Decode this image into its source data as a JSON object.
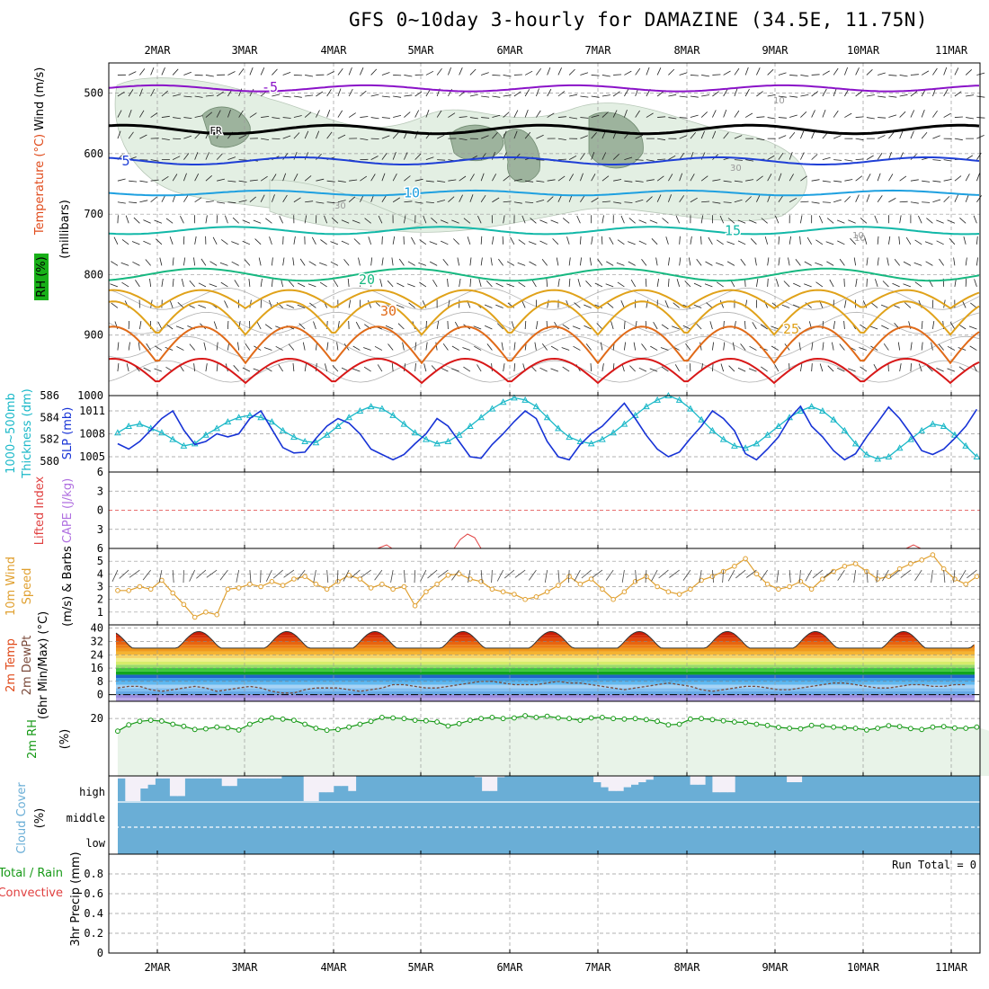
{
  "title": "GFS 0~10day 3-hourly for DAMAZINE (34.5E, 11.75N)",
  "dates": [
    "2MAR",
    "3MAR",
    "4MAR",
    "5MAR",
    "6MAR",
    "7MAR",
    "8MAR",
    "9MAR",
    "10MAR",
    "11MAR"
  ],
  "colors": {
    "t_minus5": "#8a12c8",
    "t_fr": "#000000",
    "t_5": "#1f3fd6",
    "t_10": "#1ea0e0",
    "t_15": "#12b8a8",
    "t_20": "#16b880",
    "t_30": "#e0a21a",
    "t_35": "#e06a18",
    "t_40": "#d81818",
    "rh_fill": "#e3efe3",
    "rh_dark": "#9db39d",
    "slp": "#1733d6",
    "thick": "#1ab8c8",
    "wind10": "#e0a030",
    "rh2m": "#189a18",
    "rh2m_fill": "#e8f3e8",
    "cloud": "#6aaed6",
    "cloud_clear": "#f4f0f8"
  },
  "panel_labels": {
    "upper": {
      "wind": "Wind (m/s)",
      "temperature": "Temperature (°C)",
      "rh": "RH (%)",
      "units": "(millibars)"
    },
    "slp": {
      "thick1": "1000~500mb",
      "thick2": "Thickness (dm)",
      "slp": "SLP (mb)"
    },
    "cape": {
      "li": "Lifted Index",
      "cape": "CAPE (J/kg)"
    },
    "wind10": {
      "l1": "10m Wind",
      "l2": "Speed",
      "l3": "(m/s) & Barbs"
    },
    "temp2m": {
      "l1": "2m Temp",
      "l2": "2m DewPt",
      "l3": "(6hr Min/Max) (°C)"
    },
    "rh2m": {
      "l1": "2m RH",
      "l2": "(%)"
    },
    "cloud": {
      "l1": "Cloud Cover",
      "l2": "(%)",
      "high": "high",
      "middle": "middle",
      "low": "low"
    },
    "precip": {
      "l1": "Total / Rain",
      "l2": "Convective",
      "l3": "3hr Precip (mm)",
      "run_total": "Run Total = 0"
    }
  },
  "chart_data": [
    {
      "type": "line",
      "name": "upper-air",
      "y_axis": "pressure (mb)",
      "yticks": [
        500,
        600,
        700,
        800,
        900,
        1000
      ],
      "ylim": [
        450,
        1000
      ],
      "contour_labels": [
        {
          "text": "-5",
          "level_mb": 490
        },
        {
          "text": "FR",
          "level_mb": 560
        },
        {
          "text": "5",
          "level_mb": 612
        },
        {
          "text": "10",
          "level_mb": 665
        },
        {
          "text": "15",
          "level_mb": 727
        },
        {
          "text": "20",
          "level_mb": 808
        },
        {
          "text": "30",
          "level_mb": 860
        },
        {
          "text": "25",
          "level_mb": 890
        }
      ],
      "rh_labels": [
        "10",
        "30",
        "10",
        "30",
        "10"
      ],
      "isotherms": [
        {
          "level": -5,
          "mean_mb": 492,
          "amp": 5
        },
        {
          "level": 0,
          "mean_mb": 560,
          "amp": 7
        },
        {
          "level": 5,
          "mean_mb": 612,
          "amp": 6
        },
        {
          "level": 10,
          "mean_mb": 665,
          "amp": 4
        },
        {
          "level": 15,
          "mean_mb": 727,
          "amp": 6
        },
        {
          "level": 20,
          "mean_mb": 800,
          "amp": 10
        },
        {
          "level": 25,
          "mean_mb": 845,
          "amp": 30
        },
        {
          "level": 30,
          "mean_mb": 880,
          "amp": 55
        },
        {
          "level": 35,
          "mean_mb": 925,
          "amp": 60
        },
        {
          "level": 40,
          "mean_mb": 965,
          "amp": 40
        }
      ]
    },
    {
      "type": "line",
      "name": "slp-thickness",
      "slp_ticks": [
        1005,
        1008,
        1011
      ],
      "thick_ticks": [
        580,
        582,
        584,
        586
      ],
      "slp_ylim": [
        1003,
        1013
      ],
      "thick_ylim": [
        579,
        586
      ],
      "slp": [
        1006.7,
        1006,
        1007,
        1008.5,
        1010,
        1011,
        1008.5,
        1006.6,
        1007,
        1008,
        1007.6,
        1008,
        1010,
        1011,
        1008.6,
        1006.2,
        1005.5,
        1005.6,
        1007.4,
        1009,
        1010,
        1009.4,
        1008,
        1006,
        1005.3,
        1004.6,
        1005.3,
        1006.7,
        1008,
        1010,
        1009,
        1007,
        1005,
        1004.8,
        1006.6,
        1008,
        1009.6,
        1011,
        1010,
        1007,
        1005,
        1004.6,
        1006.6,
        1008,
        1009,
        1010.5,
        1012,
        1010,
        1007.8,
        1006,
        1005,
        1005.6,
        1007.4,
        1009,
        1011,
        1010,
        1008.4,
        1005.4,
        1004.6,
        1006,
        1007.6,
        1010,
        1011.6,
        1009,
        1007.6,
        1005.8,
        1004.6,
        1005.4,
        1007.6,
        1009.5,
        1011.5,
        1010,
        1008,
        1005.8,
        1005.3,
        1006,
        1007.4,
        1009,
        1011.2,
        1009.8,
        1008.4,
        1006,
        1005,
        1005.2,
        1006.8,
        1008,
        1009.8,
        1011.6
      ],
      "thickness": [
        582.6,
        583.2,
        583.4,
        583.0,
        582.6,
        582.0,
        581.4,
        581.6,
        582.4,
        583.0,
        583.6,
        584.0,
        584.2,
        584.0,
        583.6,
        582.8,
        582.2,
        581.8,
        581.7,
        582.4,
        583.2,
        584.0,
        584.6,
        585.0,
        584.8,
        584.2,
        583.4,
        582.6,
        582.0,
        581.6,
        581.8,
        582.4,
        583.2,
        584.0,
        584.8,
        585.4,
        585.8,
        585.6,
        585.0,
        584.0,
        583.0,
        582.2,
        581.8,
        581.6,
        582.0,
        582.6,
        583.4,
        584.2,
        585.0,
        585.6,
        586.0,
        585.6,
        584.8,
        583.8,
        582.8,
        582.0,
        581.4,
        581.2,
        581.6,
        582.4,
        583.2,
        584.0,
        584.6,
        585.0,
        584.6,
        583.8,
        582.8,
        581.6,
        580.6,
        580.2,
        580.4,
        581.2,
        582.0,
        582.8,
        583.4,
        583.2,
        582.4,
        581.4,
        580.4,
        580.0,
        580.4,
        581.2,
        582.4,
        583.6,
        584.4,
        584.8,
        584.6,
        584.0,
        583.0,
        582.2
      ]
    },
    {
      "type": "line",
      "name": "cape-lifted-index",
      "yticks": [
        -6,
        -3,
        0,
        3,
        6
      ],
      "ylim": [
        -6,
        6
      ],
      "lifted_index_near_zero": 0
    },
    {
      "type": "line",
      "name": "10m-wind-speed",
      "yticks": [
        1,
        2,
        3,
        4,
        5
      ],
      "ylim": [
        0,
        6
      ],
      "values": [
        2.7,
        2.7,
        3.0,
        2.8,
        3.5,
        2.5,
        1.6,
        0.6,
        1.0,
        0.8,
        2.8,
        2.9,
        3.2,
        3.0,
        3.4,
        3.1,
        3.6,
        3.8,
        3.2,
        2.8,
        3.4,
        3.9,
        3.6,
        2.9,
        3.2,
        2.8,
        3.0,
        1.5,
        2.6,
        3.2,
        3.9,
        4.0,
        3.6,
        3.4,
        2.8,
        2.6,
        2.4,
        2.0,
        2.2,
        2.6,
        3.1,
        3.8,
        3.2,
        3.6,
        2.8,
        2.0,
        2.6,
        3.4,
        3.8,
        3.0,
        2.6,
        2.4,
        2.8,
        3.5,
        3.8,
        4.2,
        4.6,
        5.2,
        4.0,
        3.2,
        2.8,
        3.0,
        3.4,
        2.8,
        3.6,
        4.2,
        4.6,
        4.8,
        4.2,
        3.6,
        3.8,
        4.4,
        4.8,
        5.1,
        5.5,
        4.4,
        3.6,
        3.2,
        3.8,
        4.4,
        4.6,
        4.2,
        3.8,
        3.2,
        3.6,
        4.2,
        4.6,
        3.8,
        3.1
      ],
      "barb_row_label": "Barbs"
    },
    {
      "type": "area",
      "name": "2m-temperature",
      "yticks": [
        0,
        8,
        16,
        24,
        32,
        40
      ],
      "ylim": [
        -4,
        42
      ],
      "color_bands": [
        {
          "from": -4,
          "to": -2,
          "color": "#b7a6e6"
        },
        {
          "from": -2,
          "to": 0,
          "color": "#9d8ee0"
        },
        {
          "from": 0,
          "to": 2,
          "color": "#66a8e6"
        },
        {
          "from": 2,
          "to": 4,
          "color": "#7fbdf0"
        },
        {
          "from": 4,
          "to": 6,
          "color": "#a6d3f5"
        },
        {
          "from": 6,
          "to": 8,
          "color": "#5fb8f0"
        },
        {
          "from": 8,
          "to": 10,
          "color": "#3da0e6"
        },
        {
          "from": 10,
          "to": 12,
          "color": "#1e64c8"
        },
        {
          "from": 12,
          "to": 14,
          "color": "#12a51e"
        },
        {
          "from": 14,
          "to": 16,
          "color": "#3cc83c"
        },
        {
          "from": 16,
          "to": 18,
          "color": "#98dc6a"
        },
        {
          "from": 18,
          "to": 20,
          "color": "#d6ec6a"
        },
        {
          "from": 20,
          "to": 22,
          "color": "#f0f08c"
        },
        {
          "from": 22,
          "to": 24,
          "color": "#f5d266"
        },
        {
          "from": 24,
          "to": 26,
          "color": "#f5b432"
        },
        {
          "from": 26,
          "to": 28,
          "color": "#f09a1e"
        },
        {
          "from": 28,
          "to": 30,
          "color": "#ec7e14"
        },
        {
          "from": 30,
          "to": 32,
          "color": "#e8640f"
        },
        {
          "from": 32,
          "to": 34,
          "color": "#e04a0a"
        },
        {
          "from": 34,
          "to": 36,
          "color": "#d43008"
        },
        {
          "from": 36,
          "to": 38,
          "color": "#c81c08"
        },
        {
          "from": 38,
          "to": 40,
          "color": "#aa0c08"
        }
      ],
      "temp_min": 28,
      "temp_max": 38,
      "dewpoint": [
        4,
        5,
        5,
        3,
        2,
        3,
        4,
        5,
        4,
        2,
        3,
        4,
        5,
        4,
        2,
        1,
        1,
        3,
        4,
        4,
        4,
        3,
        2,
        3,
        4,
        6,
        6,
        5,
        4,
        4,
        5,
        6,
        7,
        8,
        8,
        7,
        6,
        6,
        6,
        7,
        8,
        7,
        7,
        6,
        5,
        4,
        3,
        4,
        5,
        6,
        7,
        6,
        5,
        3,
        2,
        3,
        4,
        5,
        5,
        4,
        3,
        3,
        4,
        5,
        6,
        7,
        7,
        6,
        5,
        4,
        4,
        5,
        6,
        6,
        5,
        5,
        6,
        6,
        6,
        5,
        4,
        3,
        4,
        5,
        5,
        6,
        6,
        6,
        5,
        5
      ]
    },
    {
      "type": "area",
      "name": "2m-relative-humidity",
      "yticks": [
        20
      ],
      "ylim": [
        0,
        26
      ],
      "values": [
        15.6,
        17.8,
        19.0,
        19.4,
        19.1,
        18.0,
        17.3,
        16.2,
        16.4,
        17.0,
        16.8,
        16.0,
        18.0,
        19.4,
        20.2,
        19.8,
        19.4,
        18.0,
        16.6,
        15.9,
        16.2,
        17.0,
        18.0,
        19.0,
        20.4,
        20.2,
        20.0,
        19.4,
        19.2,
        18.8,
        17.4,
        18.2,
        19.4,
        20.0,
        20.4,
        20.0,
        20.2,
        21.0,
        20.4,
        20.8,
        20.2,
        20.0,
        19.4,
        20.2,
        20.4,
        20.0,
        19.8,
        20.0,
        19.6,
        19.0,
        17.8,
        18.0,
        19.8,
        20.0,
        19.6,
        19.2,
        18.8,
        18.6,
        18.0,
        17.6,
        16.9,
        16.6,
        16.4,
        17.6,
        17.4,
        17.0,
        16.8,
        16.6,
        16.0,
        16.6,
        17.5,
        17.2,
        16.5,
        16.2,
        17.0,
        17.2,
        16.7,
        16.6,
        17.0,
        17.5,
        17.0,
        17.2,
        17.0,
        17.2,
        17.6,
        17.4,
        18.5,
        19.0,
        17.6,
        17.0,
        20.0,
        21.8,
        22.8,
        22.0
      ]
    },
    {
      "type": "bar",
      "name": "cloud-cover",
      "levels": [
        "high",
        "middle",
        "low"
      ],
      "high_clear_fraction": [
        0.1,
        1,
        1,
        0.5,
        0.35,
        0.1,
        0.1,
        0.8,
        0.8,
        0.1,
        0.1,
        0.1,
        0.1,
        0.1,
        0.4,
        0.4,
        0.1,
        0.1,
        0.1,
        0.1,
        0.1,
        0.1,
        0,
        0,
        0,
        1,
        1,
        0.65,
        0.65,
        0.4,
        0.4,
        0.6,
        0,
        0,
        0,
        0,
        0,
        0,
        0,
        0,
        0,
        0,
        0,
        0,
        0,
        0,
        0,
        0,
        0.05,
        0.6,
        0.6,
        0.05,
        0,
        0,
        0,
        0,
        0,
        0,
        0,
        0,
        0,
        0,
        0,
        0,
        0.25,
        0.45,
        0.6,
        0.6,
        0.45,
        0.35,
        0.25,
        0.15,
        0,
        0,
        0,
        0,
        0,
        0.35,
        0.35,
        0,
        0.65,
        0.65,
        0.65,
        0,
        0,
        0,
        0,
        0,
        0,
        0,
        0.25,
        0.25,
        0,
        0,
        0,
        0,
        0,
        0,
        0,
        0,
        0,
        0,
        0,
        0,
        0,
        0,
        0,
        0,
        0,
        0,
        0,
        0,
        0,
        0,
        0,
        0
      ]
    },
    {
      "type": "bar",
      "name": "3hr-precip",
      "yticks": [
        0,
        0.2,
        0.4,
        0.6,
        0.8
      ],
      "ylim": [
        0,
        1
      ],
      "values": []
    }
  ]
}
